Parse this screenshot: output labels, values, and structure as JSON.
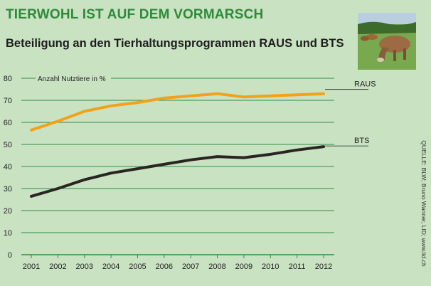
{
  "headline": "TIERWOHL IST AUF DEM VORMARSCH",
  "source": "QUELLE: BLW; Bruno Wanner, LID; www.lid.ch",
  "colors": {
    "headline": "#2e8a3a",
    "grid": "#2f8f45",
    "raus": "#f2a21a",
    "bts": "#2a2522"
  },
  "chart_data": {
    "type": "line",
    "title": "Beteiligung an den Tierhaltungsprogrammen RAUS und BTS",
    "ylabel": "Anzahl Nutztiere in %",
    "xlabel": "",
    "x": [
      "2001",
      "2002",
      "2003",
      "2004",
      "2005",
      "2006",
      "2007",
      "2008",
      "2009",
      "2010",
      "2011",
      "2012"
    ],
    "ylim": [
      0,
      80
    ],
    "yticks": [
      "0",
      "10",
      "20",
      "30",
      "40",
      "50",
      "60",
      "70",
      "80"
    ],
    "grid": true,
    "series": [
      {
        "name": "RAUS",
        "values": [
          56.5,
          60.5,
          65,
          67.5,
          69,
          71,
          72,
          73,
          71.5,
          72,
          72.5,
          73
        ]
      },
      {
        "name": "BTS",
        "values": [
          26.5,
          30,
          34,
          37,
          39,
          41,
          43,
          44.5,
          44,
          45.5,
          47.5,
          49
        ]
      }
    ]
  }
}
